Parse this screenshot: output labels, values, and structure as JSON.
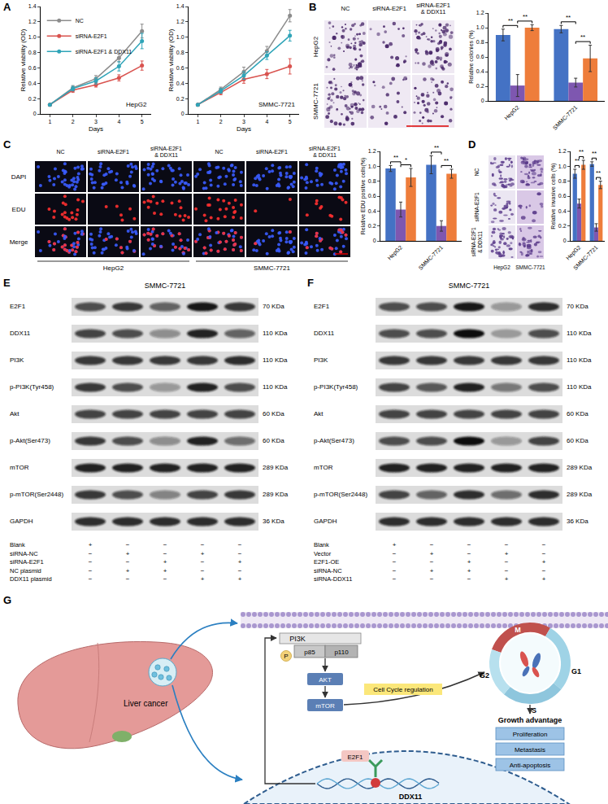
{
  "panel_labels": [
    "A",
    "B",
    "C",
    "D",
    "E",
    "F",
    "G"
  ],
  "chart_data": [
    {
      "type": "line",
      "title": "HepG2",
      "x": [
        1,
        2,
        3,
        4,
        5
      ],
      "xlim": [
        0.6,
        5.4
      ],
      "xticks": [
        1,
        2,
        3,
        4,
        5
      ],
      "ylim": [
        0,
        1.4
      ],
      "yticks": [
        0,
        0.2,
        0.4,
        0.6,
        0.8,
        {
          "value": 1,
          "label": "1.0"
        },
        1.2,
        1.4
      ],
      "x_label": "Days",
      "y_label": "Relative viability (OD)",
      "legend": "upper left",
      "marker": "circle",
      "series": [
        {
          "name": "NC",
          "color": "#8c8c8c",
          "values": [
            0.12,
            0.34,
            0.46,
            0.73,
            1.08
          ],
          "errors": [
            0.01,
            0.03,
            0.04,
            0.05,
            0.09
          ]
        },
        {
          "name": "siRNA-E2F1",
          "color": "#d9534f",
          "values": [
            0.12,
            0.31,
            0.38,
            0.47,
            0.63
          ],
          "errors": [
            0.01,
            0.03,
            0.03,
            0.04,
            0.06
          ]
        },
        {
          "name": "siRNA-E2F1 & DDX11",
          "color": "#2fa4b8",
          "values": [
            0.12,
            0.33,
            0.43,
            0.62,
            0.95
          ],
          "errors": [
            0.01,
            0.03,
            0.04,
            0.06,
            0.1
          ]
        }
      ]
    },
    {
      "type": "line",
      "title": "SMMC-7721",
      "x": [
        1,
        2,
        3,
        4,
        5
      ],
      "xlim": [
        0.6,
        5.4
      ],
      "xticks": [
        1,
        2,
        3,
        4,
        5
      ],
      "ylim": [
        0,
        1.4
      ],
      "yticks": [
        0,
        0.2,
        0.4,
        0.6,
        0.8,
        {
          "value": 1,
          "label": "1.0"
        },
        1.2,
        1.4
      ],
      "x_label": "Days",
      "y_label": "Relative viability (OD)",
      "marker": "circle",
      "series": [
        {
          "color": "#8c8c8c",
          "values": [
            0.12,
            0.32,
            0.55,
            0.82,
            1.28
          ],
          "errors": [
            0.01,
            0.03,
            0.06,
            0.06,
            0.08
          ]
        },
        {
          "color": "#d9534f",
          "values": [
            0.12,
            0.28,
            0.45,
            0.52,
            0.62
          ],
          "errors": [
            0.01,
            0.03,
            0.05,
            0.06,
            0.1
          ]
        },
        {
          "color": "#2fa4b8",
          "values": [
            0.12,
            0.3,
            0.5,
            0.76,
            1.02
          ],
          "errors": [
            0.01,
            0.03,
            0.05,
            0.05,
            0.07
          ]
        }
      ]
    },
    {
      "type": "bar",
      "categories": [
        "HepG2",
        "SMMC-7721"
      ],
      "y_label": "Relative colonies (%)",
      "ylim": [
        0,
        1.2
      ],
      "yticks": [
        0,
        0.2,
        0.4,
        0.6,
        0.8,
        {
          "value": 1,
          "label": "1.0"
        },
        1.2
      ],
      "series": [
        {
          "color": "#4472c4",
          "values": [
            0.9,
            0.98
          ],
          "errors": [
            0.08,
            0.05
          ]
        },
        {
          "color": "#7e57b0",
          "values": [
            0.21,
            0.25
          ],
          "errors": [
            0.15,
            0.06
          ]
        },
        {
          "color": "#ee7d3b",
          "values": [
            1.0,
            0.58
          ],
          "errors": [
            0.04,
            0.18
          ]
        }
      ],
      "significance": [
        {
          "category": 0,
          "from": 0,
          "to": 1,
          "label": "**"
        },
        {
          "category": 0,
          "from": 1,
          "to": 2,
          "label": "**"
        },
        {
          "category": 1,
          "from": 0,
          "to": 1,
          "label": "**"
        },
        {
          "category": 1,
          "from": 1,
          "to": 2,
          "label": "**"
        }
      ]
    },
    {
      "type": "bar",
      "categories": [
        "HepG2",
        "SMMC-7721"
      ],
      "y_label": "Relative EDU positive cells(%)",
      "ylim": [
        0,
        1.2
      ],
      "yticks": [
        0,
        0.2,
        0.4,
        0.6,
        0.8,
        {
          "value": 1,
          "label": "1.0"
        },
        1.2
      ],
      "series": [
        {
          "color": "#4472c4",
          "values": [
            0.97,
            1.02
          ],
          "errors": [
            0.04,
            0.12
          ]
        },
        {
          "color": "#7e57b0",
          "values": [
            0.42,
            0.2
          ],
          "errors": [
            0.1,
            0.07
          ]
        },
        {
          "color": "#ee7d3b",
          "values": [
            0.85,
            0.9
          ],
          "errors": [
            0.12,
            0.06
          ]
        }
      ],
      "significance": [
        {
          "category": 0,
          "from": 0,
          "to": 1,
          "label": "**"
        },
        {
          "category": 0,
          "from": 1,
          "to": 2,
          "label": "*"
        },
        {
          "category": 1,
          "from": 0,
          "to": 1,
          "label": "**"
        },
        {
          "category": 1,
          "from": 1,
          "to": 2,
          "label": "**"
        }
      ]
    },
    {
      "type": "bar",
      "categories": [
        "HepG2",
        "SMMC-7721"
      ],
      "y_label": "Relative invasive cells (%)",
      "ylim": [
        0,
        1.2
      ],
      "yticks": [
        0,
        0.2,
        0.4,
        0.6,
        0.8,
        {
          "value": 1,
          "label": "1.0"
        },
        1.2
      ],
      "series": [
        {
          "color": "#4472c4",
          "values": [
            0.9,
            1.03
          ],
          "errors": [
            0.06,
            0.03
          ]
        },
        {
          "color": "#7e57b0",
          "values": [
            0.5,
            0.18
          ],
          "errors": [
            0.06,
            0.05
          ]
        },
        {
          "color": "#ee7d3b",
          "values": [
            1.02,
            0.75
          ],
          "errors": [
            0.06,
            0.05
          ]
        }
      ],
      "significance": [
        {
          "category": 0,
          "from": 0,
          "to": 1,
          "label": "**"
        },
        {
          "category": 0,
          "from": 1,
          "to": 2,
          "label": "**"
        },
        {
          "category": 1,
          "from": 0,
          "to": 1,
          "label": "**"
        },
        {
          "category": 1,
          "from": 1,
          "to": 2,
          "label": "**"
        }
      ]
    }
  ],
  "image_panels": {
    "B": {
      "columns": [
        "NC",
        "siRNA-E2F1",
        "siRNA-E2F1 & DDX11"
      ],
      "rows": [
        "HepG2",
        "SMMC-7721"
      ]
    },
    "C": {
      "columns": [
        "NC",
        "siRNA-E2F1",
        "siRNA-E2F1 & DDX11",
        "NC",
        "siRNA-E2F1",
        "siRNA-E2F1 & DDX11"
      ],
      "rows": [
        "DAPI",
        "EDU",
        "Merge"
      ],
      "groups": [
        "HepG2",
        "SMMC-7721"
      ]
    },
    "D": {
      "rows": [
        "NC",
        "siRNA-E2F1",
        "siRNA-E2F1 & DDX11"
      ],
      "columns": [
        "HepG2",
        "SMMC-7721"
      ]
    }
  },
  "blots": [
    {
      "title": "SMMC-7721",
      "rows": [
        {
          "name": "E2F1",
          "size": "70 KDa",
          "bands": [
            0.7,
            0.8,
            0.6,
            0.95,
            0.8
          ]
        },
        {
          "name": "DDX11",
          "size": "110 KDa",
          "bands": [
            0.75,
            0.7,
            0.4,
            0.9,
            0.6
          ]
        },
        {
          "name": "PI3K",
          "size": "110 KDa",
          "bands": [
            0.8,
            0.8,
            0.8,
            0.8,
            0.85
          ]
        },
        {
          "name": "p-PI3K(Tyr458)",
          "size": "110 KDa",
          "bands": [
            0.8,
            0.7,
            0.35,
            0.9,
            0.7
          ]
        },
        {
          "name": "Akt",
          "size": "60 KDa",
          "bands": [
            0.75,
            0.75,
            0.75,
            0.75,
            0.75
          ]
        },
        {
          "name": "p-Akt(Ser473)",
          "size": "60 KDa",
          "bands": [
            0.8,
            0.7,
            0.4,
            0.9,
            0.55
          ]
        },
        {
          "name": "mTOR",
          "size": "289 KDa",
          "bands": [
            0.9,
            0.9,
            0.9,
            0.9,
            0.9
          ]
        },
        {
          "name": "p-mTOR(Ser2448)",
          "size": "289 KDa",
          "bands": [
            0.8,
            0.7,
            0.45,
            0.75,
            0.8
          ]
        },
        {
          "name": "GAPDH",
          "size": "36 KDa",
          "bands": [
            0.85,
            0.85,
            0.85,
            0.85,
            0.85
          ]
        }
      ],
      "conditions": [
        {
          "name": "Blank",
          "lanes": [
            "+",
            "−",
            "−",
            "−",
            "−"
          ]
        },
        {
          "name": "siRNA-NC",
          "lanes": [
            "−",
            "+",
            "−",
            "+",
            "−"
          ]
        },
        {
          "name": "siRNA-E2F1",
          "lanes": [
            "−",
            "−",
            "+",
            "−",
            "+"
          ]
        },
        {
          "name": "NC plasmid",
          "lanes": [
            "−",
            "+",
            "+",
            "−",
            "−"
          ]
        },
        {
          "name": "DDX11 plasmid",
          "lanes": [
            "−",
            "−",
            "−",
            "+",
            "+"
          ]
        }
      ]
    },
    {
      "title": "SMMC-7721",
      "rows": [
        {
          "name": "E2F1",
          "size": "70 KDa",
          "bands": [
            0.7,
            0.7,
            0.95,
            0.35,
            0.85
          ]
        },
        {
          "name": "DDX11",
          "size": "110 KDa",
          "bands": [
            0.7,
            0.7,
            1.0,
            0.3,
            0.7
          ]
        },
        {
          "name": "PI3K",
          "size": "110 KDa",
          "bands": [
            0.8,
            0.8,
            0.8,
            0.8,
            0.8
          ]
        },
        {
          "name": "p-PI3K(Tyr458)",
          "size": "110 KDa",
          "bands": [
            0.75,
            0.65,
            0.9,
            0.5,
            0.7
          ]
        },
        {
          "name": "Akt",
          "size": "60 KDa",
          "bands": [
            0.75,
            0.75,
            0.75,
            0.75,
            0.75
          ]
        },
        {
          "name": "p-Akt(Ser473)",
          "size": "60 KDa",
          "bands": [
            0.7,
            0.7,
            1.0,
            0.35,
            0.75
          ]
        },
        {
          "name": "mTOR",
          "size": "289 KDa",
          "bands": [
            0.9,
            0.9,
            0.9,
            0.9,
            0.9
          ]
        },
        {
          "name": "p-mTOR(Ser2448)",
          "size": "289 KDa",
          "bands": [
            0.75,
            0.6,
            0.85,
            0.55,
            0.85
          ]
        },
        {
          "name": "GAPDH",
          "size": "36 KDa",
          "bands": [
            0.85,
            0.85,
            0.85,
            0.85,
            0.85
          ]
        }
      ],
      "conditions": [
        {
          "name": "Blank",
          "lanes": [
            "+",
            "−",
            "−",
            "−",
            "−"
          ]
        },
        {
          "name": "Vector",
          "lanes": [
            "−",
            "+",
            "−",
            "+",
            "−"
          ]
        },
        {
          "name": "E2F1-OE",
          "lanes": [
            "−",
            "−",
            "+",
            "−",
            "+"
          ]
        },
        {
          "name": "siRNA-NC",
          "lanes": [
            "−",
            "+",
            "+",
            "−",
            "−"
          ]
        },
        {
          "name": "siRNA-DDX11",
          "lanes": [
            "−",
            "−",
            "−",
            "+",
            "+"
          ]
        }
      ]
    }
  ],
  "diagram": {
    "organ": "Liver cancer",
    "kinase": "PI3K",
    "subunits": [
      "p85",
      "p110"
    ],
    "phospho": "P",
    "cascade": [
      "AKT",
      "mTOR"
    ],
    "process": "Cell Cycle regulation",
    "factor": "E2F1",
    "gene": "DDX11",
    "phases": [
      "M",
      "G1",
      "S",
      "G2"
    ],
    "outcome": "Growth advantage",
    "effects": [
      "Proliferation",
      "Metastasis",
      "Anti-apoptosis"
    ]
  }
}
